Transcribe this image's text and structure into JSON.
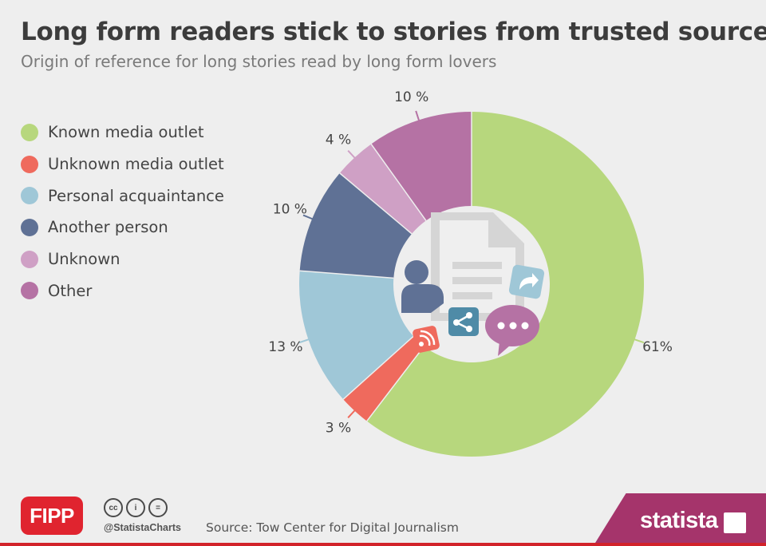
{
  "header": {
    "title": "Long form readers stick to stories from trusted sources",
    "subtitle": "Origin of reference for long stories read by long form lovers"
  },
  "legend": [
    {
      "label": "Known media outlet",
      "color": "#b7d77d"
    },
    {
      "label": "Unknown media outlet",
      "color": "#ef6a5d"
    },
    {
      "label": "Personal acquaintance",
      "color": "#9fc7d7"
    },
    {
      "label": "Another person",
      "color": "#5f7195"
    },
    {
      "label": "Unknown",
      "color": "#cfa0c5"
    },
    {
      "label": "Other",
      "color": "#b572a4"
    }
  ],
  "chart_data": {
    "type": "pie",
    "donut": true,
    "title": "Long form readers stick to stories from trusted sources",
    "subtitle": "Origin of reference for long stories read by long form lovers",
    "categories": [
      "Known media outlet",
      "Unknown media outlet",
      "Personal acquaintance",
      "Another person",
      "Unknown",
      "Other"
    ],
    "values": [
      61,
      3,
      13,
      10,
      4,
      10
    ],
    "data_labels": [
      "61%",
      "3 %",
      "13 %",
      "10 %",
      "4 %",
      "10 %"
    ],
    "colors": [
      "#b7d77d",
      "#ef6a5d",
      "#9fc7d7",
      "#5f7195",
      "#cfa0c5",
      "#b572a4"
    ],
    "legend_position": "left",
    "center_icons": [
      "document-icon",
      "person-icon",
      "share-icon",
      "rss-icon",
      "speech-bubble-icon",
      "forward-arrow-icon"
    ]
  },
  "footer": {
    "partner_logo": "FIPP",
    "license_icons": [
      "cc-icon",
      "attribution-icon",
      "no-derivatives-icon"
    ],
    "license_text": [
      "cc",
      "i",
      "="
    ],
    "handle": "@StatistaCharts",
    "source": "Source: Tow Center for Digital Journalism",
    "brand": "statista"
  }
}
